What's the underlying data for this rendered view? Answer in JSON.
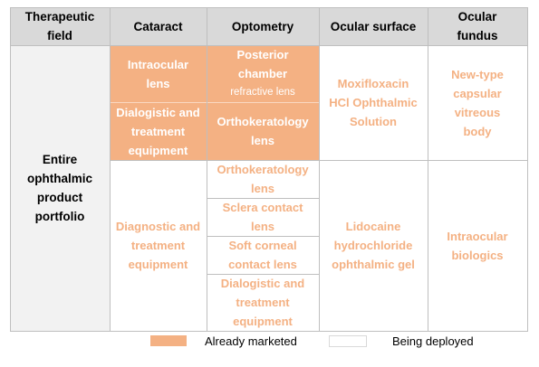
{
  "colors": {
    "marketed": "#f4b183",
    "header": "#d9d9d9",
    "portfolio_bg": "#f2f2f2",
    "grid": "#bfbfbf"
  },
  "header": {
    "therapeutic_field": "Therapeutic field",
    "cataract": "Cataract",
    "optometry": "Optometry",
    "ocular_surface": "Ocular surface",
    "ocular_fundus": "Ocular fundus"
  },
  "row_label": "Entire ophthalmic product portfolio",
  "cataract": {
    "marketed": [
      "Intraocular lens",
      "Dialogistic and treatment equipment"
    ],
    "deploying": "Diagnostic and treatment equipment"
  },
  "optometry": {
    "marketed": [
      "Posterior chamber",
      "refractive lens",
      "Orthokeratology lens"
    ],
    "deploying": [
      "Orthokeratology lens",
      "Sclera contact lens",
      "Soft corneal contact lens",
      "Dialogistic and treatment equipment"
    ]
  },
  "ocular_surface": {
    "marketed_deploy_top": "Moxifloxacin HCl Ophthalmic Solution",
    "deploying": "Lidocaine hydrochloride ophthalmic gel"
  },
  "ocular_fundus": {
    "top": "New-type capsular vitreous body",
    "deploying": "Intraocular biologics"
  },
  "legend": {
    "marketed": "Already marketed",
    "deploying": "Being deployed"
  }
}
